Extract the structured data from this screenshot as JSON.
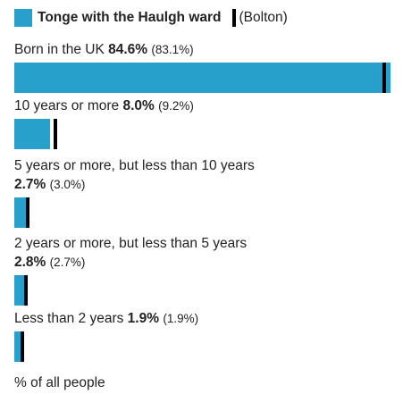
{
  "chart_data": {
    "type": "bar",
    "categories": [
      "Born in the UK",
      "10 years or more",
      "5 years or more, but less than 10 years",
      "2 years or more, but less than 5 years",
      "Less than 2 years"
    ],
    "series": [
      {
        "name": "Tonge with the Haulgh ward",
        "color": "#27a0cc",
        "values": [
          84.6,
          8.0,
          2.7,
          2.8,
          1.9
        ],
        "value_labels": [
          "84.6%",
          "8.0%",
          "2.7%",
          "2.8%",
          "1.9%"
        ]
      },
      {
        "name": "(Bolton)",
        "color": "#000000",
        "values": [
          83.1,
          9.2,
          3.0,
          2.7,
          1.9
        ],
        "value_labels": [
          "(83.1%)",
          "(9.2%)",
          "(3.0%)",
          "(2.7%)",
          "(1.9%)"
        ]
      }
    ],
    "xlabel": "% of all people",
    "xlim": [
      0,
      85
    ]
  }
}
